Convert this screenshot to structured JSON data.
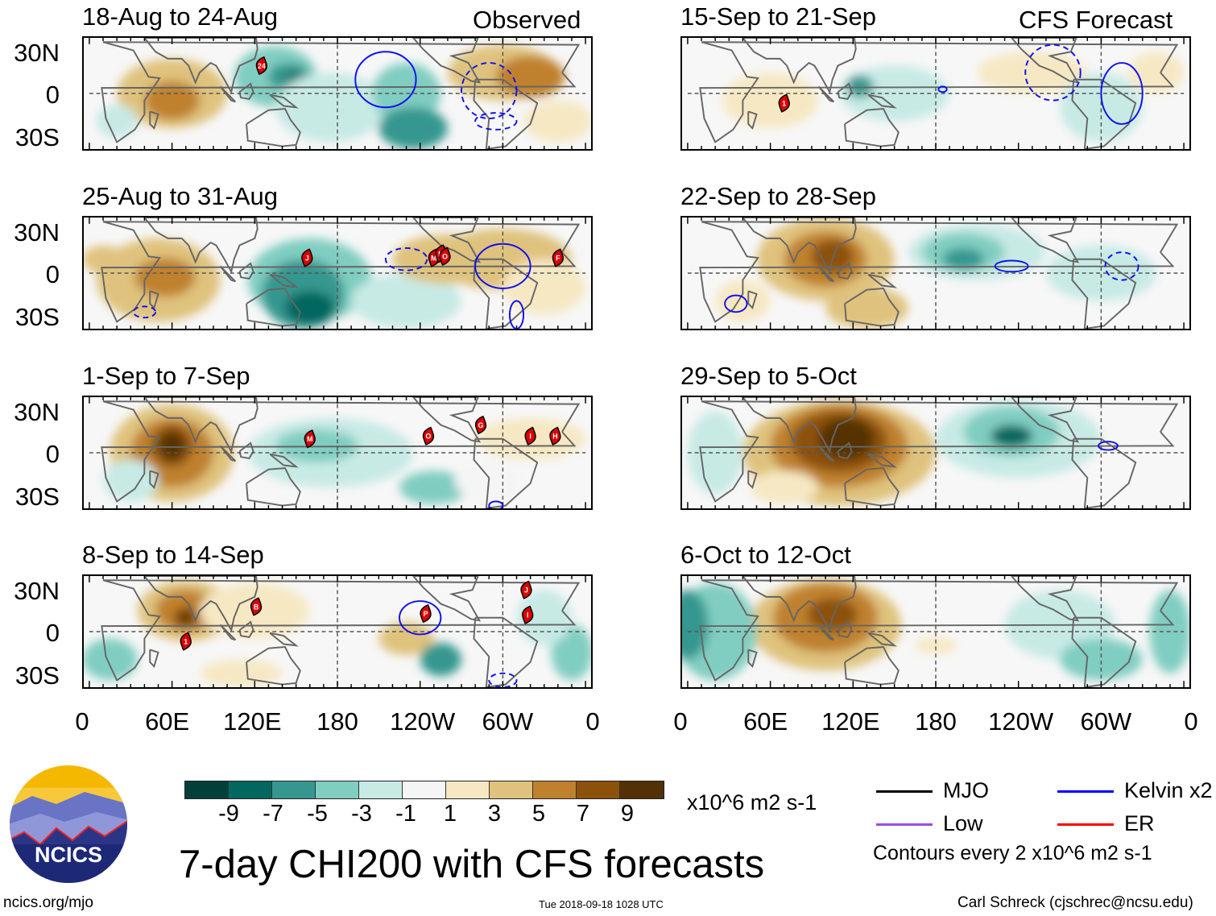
{
  "observed_label": "Observed",
  "forecast_label": "CFS Forecast",
  "panels_left": [
    {
      "title": "18-Aug to 24-Aug",
      "storms": [
        "24"
      ]
    },
    {
      "title": "25-Aug to 31-Aug",
      "storms": [
        "J",
        "M",
        "N",
        "O",
        "F"
      ]
    },
    {
      "title": "1-Sep to 7-Sep",
      "storms": [
        "M",
        "O",
        "G",
        "I",
        "H"
      ]
    },
    {
      "title": "8-Sep to 14-Sep",
      "storms": [
        "B",
        "1",
        "P",
        "J",
        "I"
      ]
    }
  ],
  "panels_right": [
    {
      "title": "15-Sep to 21-Sep",
      "storms": [
        "1"
      ]
    },
    {
      "title": "22-Sep to 28-Sep",
      "storms": []
    },
    {
      "title": "29-Sep to 5-Oct",
      "storms": []
    },
    {
      "title": "6-Oct to 12-Oct",
      "storms": []
    }
  ],
  "y_ticks": [
    "30N",
    "0",
    "30S"
  ],
  "x_ticks": [
    "0",
    "60E",
    "120E",
    "180",
    "120W",
    "60W",
    "0"
  ],
  "colorbar": {
    "colors": [
      "#01403a",
      "#02685f",
      "#35978f",
      "#80cdc1",
      "#c7eae5",
      "#f5f5f5",
      "#f6e8c3",
      "#dfc27d",
      "#bf812d",
      "#8c510a",
      "#543005"
    ],
    "ticks": [
      "-9",
      "-7",
      "-5",
      "-3",
      "-1",
      "1",
      "3",
      "5",
      "7",
      "9"
    ],
    "units": "x10^6 m2 s-1"
  },
  "main_title": "7-day CHI200 with CFS forecasts",
  "logo_text": "NCICS",
  "legend": {
    "items": [
      {
        "label": "MJO",
        "color": "#000000"
      },
      {
        "label": "Kelvin x2",
        "color": "#0000ff"
      },
      {
        "label": "Low",
        "color": "#9b4de0"
      },
      {
        "label": "ER",
        "color": "#ff0000"
      }
    ],
    "contours": "Contours every 2 x10^6 m2 s-1"
  },
  "footer": {
    "url": "ncics.org/mjo",
    "timestamp": "Tue 2018-09-18 1028 UTC",
    "author": "Carl Schreck (cjschrec@ncsu.edu)"
  }
}
